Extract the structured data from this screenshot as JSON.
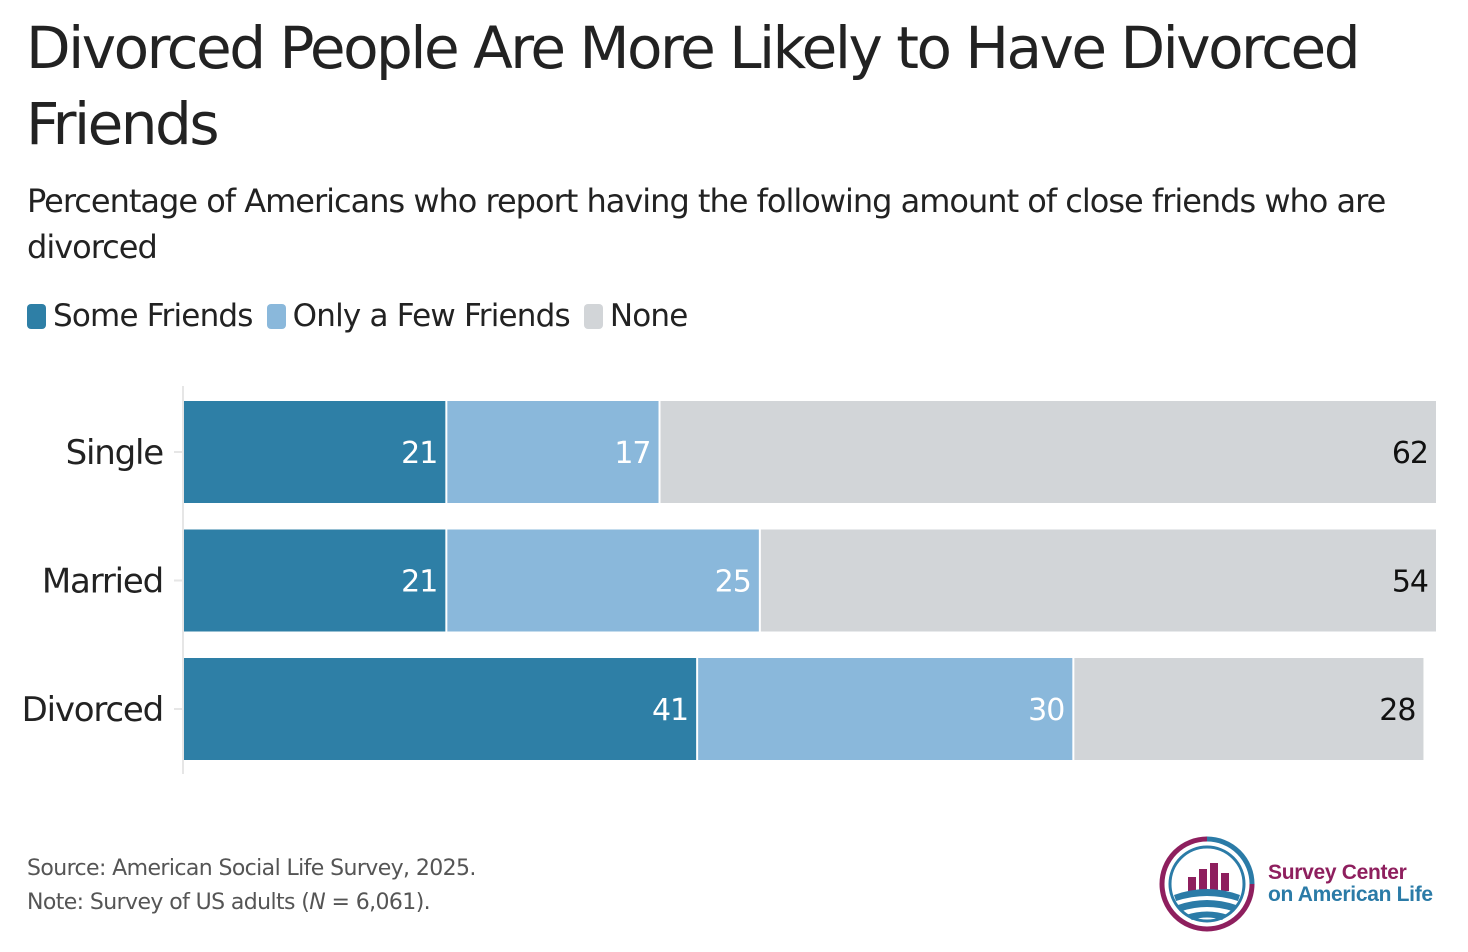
{
  "title": "Divorced People Are More Likely to Have Divorced Friends",
  "subtitle": "Percentage of Americans who report having the following amount of close friends who are divorced",
  "colors": {
    "some": "#2e7fa6",
    "few": "#8ab8db",
    "none": "#d2d5d8",
    "logo_magenta": "#8e1f5e",
    "logo_blue": "#2b7ba7"
  },
  "chart_data": {
    "type": "bar",
    "orientation": "horizontal",
    "stacked": true,
    "title": "Divorced People Are More Likely to Have Divorced Friends",
    "subtitle": "Percentage of Americans who report having the following amount of close friends who are divorced",
    "xlabel": "",
    "ylabel": "",
    "xlim": [
      0,
      100
    ],
    "legend_position": "top-left",
    "categories": [
      "Single",
      "Married",
      "Divorced"
    ],
    "series": [
      {
        "name": "Some Friends",
        "values": [
          21,
          21,
          41
        ]
      },
      {
        "name": "Only a Few Friends",
        "values": [
          17,
          25,
          30
        ]
      },
      {
        "name": "None",
        "values": [
          62,
          54,
          28
        ]
      }
    ]
  },
  "footer": {
    "source": "Source: American Social Life Survey, 2025.",
    "note_prefix": "Note: Survey of US adults (",
    "note_n": "N",
    "note_suffix": " = 6,061)."
  },
  "logo": {
    "line1": "Survey Center",
    "line2": "on American Life"
  }
}
